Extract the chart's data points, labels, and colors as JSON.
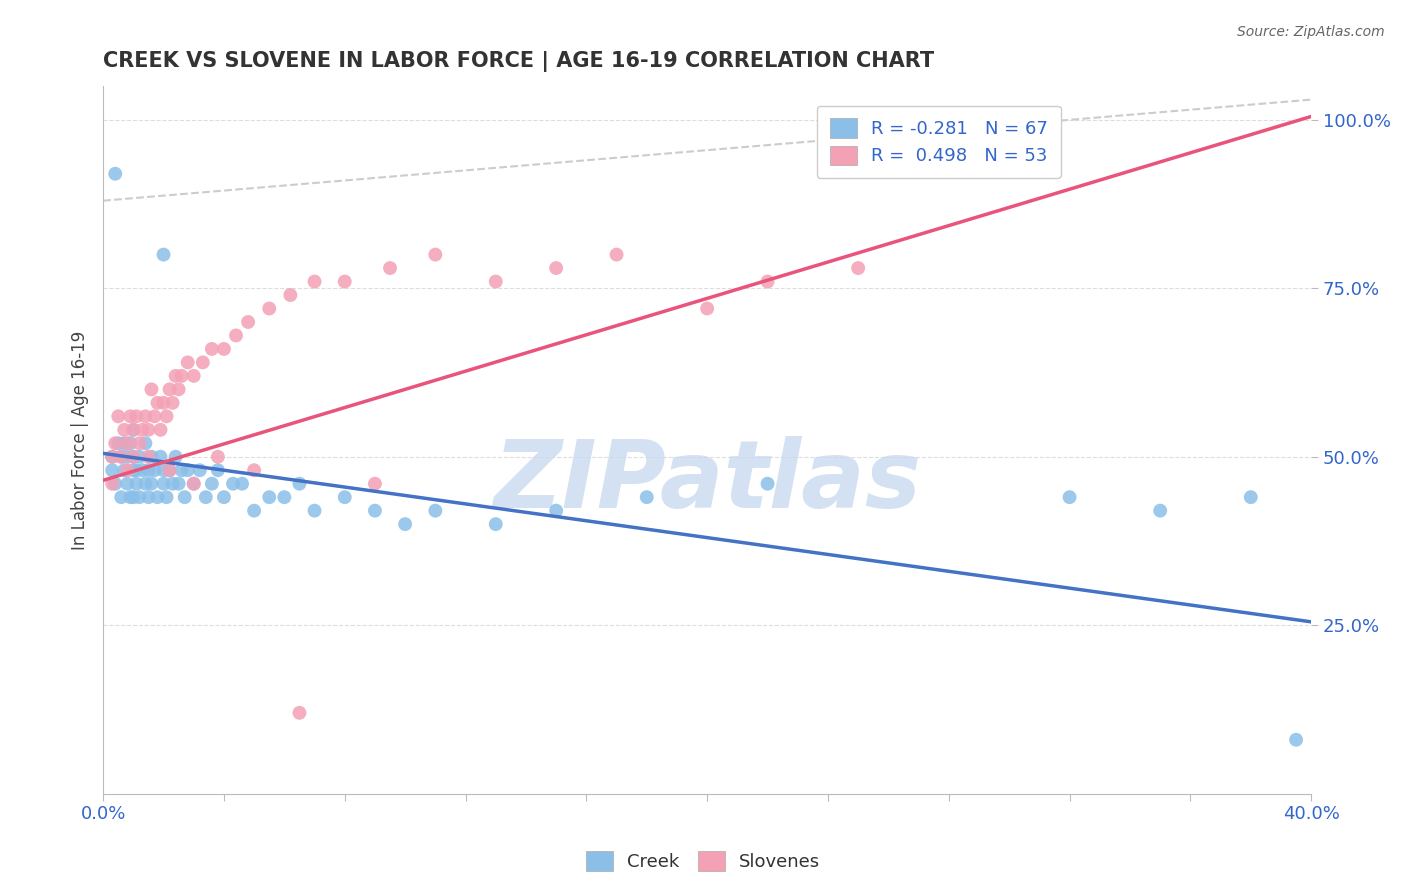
{
  "title": "CREEK VS SLOVENE IN LABOR FORCE | AGE 16-19 CORRELATION CHART",
  "source_text": "Source: ZipAtlas.com",
  "ylabel": "In Labor Force | Age 16-19",
  "xlim": [
    0.0,
    0.4
  ],
  "ylim": [
    0.0,
    1.05
  ],
  "xticks": [
    0.0,
    0.04,
    0.08,
    0.12,
    0.16,
    0.2,
    0.24,
    0.28,
    0.32,
    0.36,
    0.4
  ],
  "xticklabels": [
    "0.0%",
    "",
    "",
    "",
    "",
    "",
    "",
    "",
    "",
    "",
    "40.0%"
  ],
  "yticks": [
    0.25,
    0.5,
    0.75,
    1.0
  ],
  "yticklabels": [
    "25.0%",
    "50.0%",
    "75.0%",
    "100.0%"
  ],
  "creek_color": "#8BBFE8",
  "slovene_color": "#F4A0B5",
  "creek_line_color": "#4472C4",
  "slovene_line_color": "#E8547A",
  "ref_line_color": "#CCCCCC",
  "title_color": "#333333",
  "source_color": "#666666",
  "legend_r_creek": "R = -0.281",
  "legend_n_creek": "N = 67",
  "legend_r_slovene": "R =  0.498",
  "legend_n_slovene": "N = 53",
  "watermark": "ZIPatlas",
  "watermark_color": "#C5D8F0",
  "grid_color": "#DDDDDD",
  "background_color": "#FFFFFF",
  "creek_line_x0": 0.0,
  "creek_line_y0": 0.505,
  "creek_line_x1": 0.4,
  "creek_line_y1": 0.255,
  "slovene_line_x0": 0.0,
  "slovene_line_y0": 0.465,
  "slovene_line_x1": 0.4,
  "slovene_line_y1": 1.005,
  "ref_line_x0": 0.0,
  "ref_line_y0": 0.88,
  "ref_line_x1": 0.4,
  "ref_line_y1": 1.03,
  "creek_scatter_x": [
    0.003,
    0.003,
    0.004,
    0.005,
    0.006,
    0.006,
    0.007,
    0.007,
    0.008,
    0.008,
    0.009,
    0.009,
    0.01,
    0.01,
    0.01,
    0.01,
    0.011,
    0.011,
    0.012,
    0.012,
    0.013,
    0.014,
    0.014,
    0.015,
    0.015,
    0.016,
    0.016,
    0.017,
    0.018,
    0.019,
    0.02,
    0.02,
    0.021,
    0.022,
    0.023,
    0.024,
    0.025,
    0.026,
    0.027,
    0.028,
    0.03,
    0.032,
    0.034,
    0.036,
    0.038,
    0.04,
    0.043,
    0.046,
    0.05,
    0.055,
    0.06,
    0.065,
    0.07,
    0.08,
    0.09,
    0.1,
    0.11,
    0.13,
    0.15,
    0.18,
    0.22,
    0.32,
    0.35,
    0.38,
    0.395,
    0.004,
    0.02
  ],
  "creek_scatter_y": [
    0.48,
    0.5,
    0.46,
    0.52,
    0.5,
    0.44,
    0.48,
    0.52,
    0.46,
    0.5,
    0.44,
    0.52,
    0.48,
    0.5,
    0.44,
    0.54,
    0.48,
    0.46,
    0.5,
    0.44,
    0.48,
    0.46,
    0.52,
    0.48,
    0.44,
    0.5,
    0.46,
    0.48,
    0.44,
    0.5,
    0.46,
    0.48,
    0.44,
    0.48,
    0.46,
    0.5,
    0.46,
    0.48,
    0.44,
    0.48,
    0.46,
    0.48,
    0.44,
    0.46,
    0.48,
    0.44,
    0.46,
    0.46,
    0.42,
    0.44,
    0.44,
    0.46,
    0.42,
    0.44,
    0.42,
    0.4,
    0.42,
    0.4,
    0.42,
    0.44,
    0.46,
    0.44,
    0.42,
    0.44,
    0.08,
    0.92,
    0.8
  ],
  "slovene_scatter_x": [
    0.003,
    0.004,
    0.005,
    0.006,
    0.007,
    0.008,
    0.009,
    0.01,
    0.01,
    0.011,
    0.012,
    0.013,
    0.014,
    0.015,
    0.016,
    0.017,
    0.018,
    0.019,
    0.02,
    0.021,
    0.022,
    0.023,
    0.024,
    0.025,
    0.026,
    0.028,
    0.03,
    0.033,
    0.036,
    0.04,
    0.044,
    0.048,
    0.055,
    0.062,
    0.07,
    0.08,
    0.095,
    0.11,
    0.13,
    0.15,
    0.17,
    0.2,
    0.22,
    0.25,
    0.003,
    0.008,
    0.015,
    0.022,
    0.03,
    0.038,
    0.05,
    0.065,
    0.09
  ],
  "slovene_scatter_y": [
    0.5,
    0.52,
    0.56,
    0.5,
    0.54,
    0.52,
    0.56,
    0.54,
    0.5,
    0.56,
    0.52,
    0.54,
    0.56,
    0.54,
    0.6,
    0.56,
    0.58,
    0.54,
    0.58,
    0.56,
    0.6,
    0.58,
    0.62,
    0.6,
    0.62,
    0.64,
    0.62,
    0.64,
    0.66,
    0.66,
    0.68,
    0.7,
    0.72,
    0.74,
    0.76,
    0.76,
    0.78,
    0.8,
    0.76,
    0.78,
    0.8,
    0.72,
    0.76,
    0.78,
    0.46,
    0.48,
    0.5,
    0.48,
    0.46,
    0.5,
    0.48,
    0.12,
    0.46
  ]
}
